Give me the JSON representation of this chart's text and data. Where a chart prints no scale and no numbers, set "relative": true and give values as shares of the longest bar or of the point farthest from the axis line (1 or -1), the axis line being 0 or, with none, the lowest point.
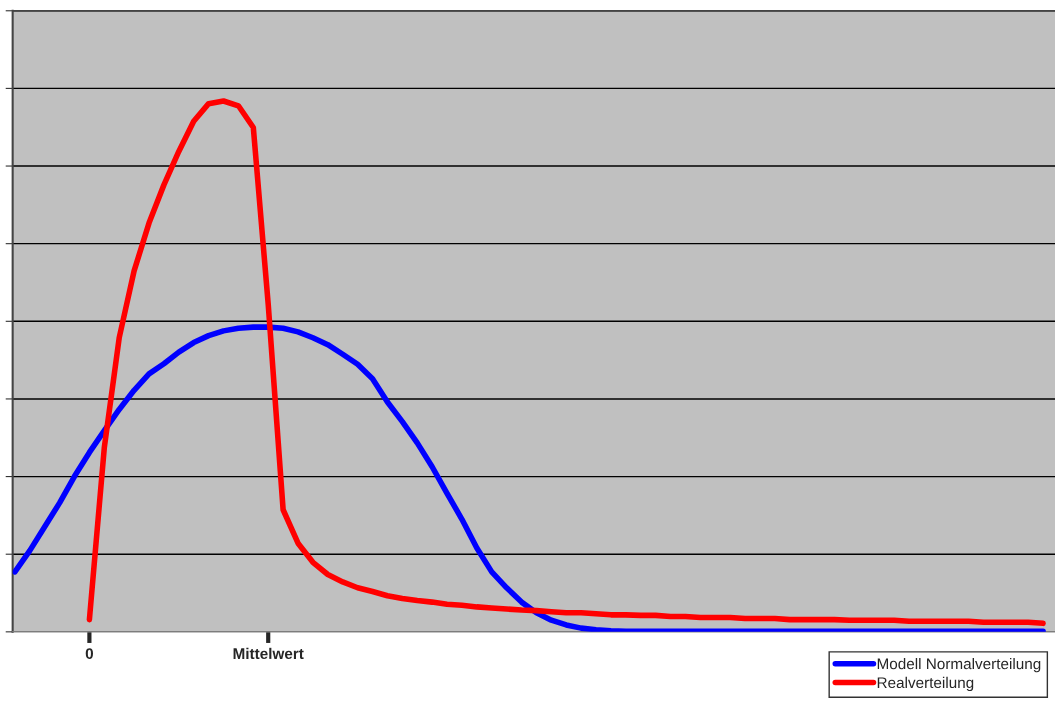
{
  "chart_data": {
    "type": "line",
    "relative": true,
    "grid": "y",
    "legend": "bottom right",
    "marker": "none",
    "line_style": "solid",
    "categories": [
      null,
      null,
      null,
      null,
      null,
      "0",
      null,
      null,
      null,
      null,
      null,
      null,
      null,
      null,
      null,
      null,
      null,
      "Mittelwert",
      null,
      null,
      null,
      null,
      null,
      null,
      null,
      null,
      null,
      null,
      null,
      null,
      null,
      null,
      null,
      null,
      null,
      null,
      null,
      null,
      null,
      null,
      null,
      null,
      null,
      null,
      null,
      null,
      null,
      null,
      null,
      null,
      null,
      null,
      null,
      null,
      null,
      null,
      null,
      null,
      null,
      null,
      null,
      null,
      null,
      null,
      null,
      null,
      null,
      null,
      null,
      null
    ],
    "series": [
      {
        "name": "Modell Normalverteilung",
        "color": "#0000ff",
        "values": [
          0.113,
          0.153,
          0.198,
          0.243,
          0.293,
          0.338,
          0.379,
          0.419,
          0.455,
          0.486,
          0.505,
          0.527,
          0.545,
          0.558,
          0.567,
          0.572,
          0.574,
          0.574,
          0.572,
          0.565,
          0.554,
          0.541,
          0.523,
          0.504,
          0.477,
          0.433,
          0.396,
          0.356,
          0.311,
          0.261,
          0.212,
          0.158,
          0.113,
          0.083,
          0.056,
          0.036,
          0.022,
          0.013,
          0.007,
          0.004,
          0.002,
          0.001,
          0.001,
          0.001,
          0.001,
          0.001,
          0.001,
          0.001,
          0.001,
          0.001,
          0.001,
          0.001,
          0.001,
          0.001,
          0.001,
          0.001,
          0.001,
          0.001,
          0.001,
          0.001,
          0.001,
          0.001,
          0.001,
          0.001,
          0.001,
          0.001,
          0.001,
          0.001,
          0.001,
          0.001
        ]
      },
      {
        "name": "Realverteilung",
        "color": "#ff0000",
        "values": [
          null,
          null,
          null,
          null,
          null,
          0.023,
          0.347,
          0.554,
          0.68,
          0.77,
          0.842,
          0.905,
          0.962,
          0.995,
          1.0,
          0.991,
          0.95,
          0.617,
          0.23,
          0.167,
          0.131,
          0.108,
          0.094,
          0.083,
          0.076,
          0.068,
          0.063,
          0.059,
          0.056,
          0.052,
          0.05,
          0.047,
          0.045,
          0.043,
          0.041,
          0.04,
          0.038,
          0.036,
          0.036,
          0.034,
          0.032,
          0.032,
          0.031,
          0.031,
          0.029,
          0.029,
          0.027,
          0.027,
          0.027,
          0.025,
          0.025,
          0.025,
          0.023,
          0.023,
          0.023,
          0.023,
          0.022,
          0.022,
          0.022,
          0.022,
          0.02,
          0.02,
          0.02,
          0.02,
          0.02,
          0.018,
          0.018,
          0.018,
          0.018,
          0.016
        ]
      }
    ]
  }
}
